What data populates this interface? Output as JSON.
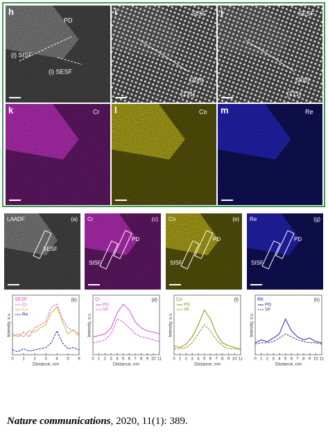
{
  "top_panels": [
    {
      "label": "h",
      "texts": [
        "PD",
        "(i) SISF",
        "(i) SESF"
      ]
    },
    {
      "label": "i",
      "texts": [
        "SISF",
        "[200]",
        "[1̄1̄1]"
      ]
    },
    {
      "label": "j",
      "texts": [
        "SESF",
        "[200]",
        "[1̄1̄1]"
      ]
    },
    {
      "label": "k",
      "texts": [
        "Cr"
      ]
    },
    {
      "label": "l",
      "texts": [
        "Co"
      ]
    },
    {
      "label": "m",
      "texts": [
        "Re"
      ]
    }
  ],
  "bottom_panels": [
    {
      "title": "LAADF",
      "tag": "(a)",
      "texts": [
        "SESF"
      ]
    },
    {
      "title": "Cr",
      "tag": "(c)",
      "texts": [
        "PD",
        "SISF"
      ]
    },
    {
      "title": "Co",
      "tag": "(e)",
      "texts": [
        "PD",
        "SISF"
      ]
    },
    {
      "title": "Re",
      "tag": "(g)",
      "texts": [
        "PD",
        "SISF"
      ]
    }
  ],
  "plots": [
    {
      "title": "SESF",
      "tag": "(b)",
      "xlabel": "Distance, nm",
      "ylabel": "Intensity, a.u.",
      "xlim": [
        0,
        6
      ],
      "xticks": [
        0,
        1,
        2,
        3,
        4,
        5,
        6
      ],
      "ylim": [
        0,
        1
      ],
      "x": [
        0,
        0.5,
        1,
        1.5,
        2,
        2.5,
        3,
        3.5,
        4,
        4.5,
        5,
        5.5,
        6
      ],
      "series": [
        {
          "name": "Cr",
          "color": "#e040e0",
          "dash": true,
          "values": [
            0.35,
            0.3,
            0.38,
            0.3,
            0.45,
            0.5,
            0.55,
            0.8,
            0.85,
            0.6,
            0.45,
            0.4,
            0.35
          ]
        },
        {
          "name": "Co",
          "color": "#c8c020",
          "dash": false,
          "values": [
            0.3,
            0.35,
            0.3,
            0.4,
            0.38,
            0.45,
            0.5,
            0.7,
            0.8,
            0.55,
            0.35,
            0.42,
            0.3
          ]
        },
        {
          "name": "Re",
          "color": "#2020c0",
          "dash": true,
          "values": [
            0.08,
            0.05,
            0.1,
            0.06,
            0.08,
            0.1,
            0.12,
            0.2,
            0.4,
            0.2,
            0.1,
            0.12,
            0.08
          ]
        }
      ]
    },
    {
      "title": "Cr",
      "tag": "(d)",
      "xlabel": "Distance, nm",
      "ylabel": "Intensity, a.u.",
      "xlim": [
        0,
        11
      ],
      "xticks": [
        0,
        1,
        2,
        3,
        4,
        5,
        6,
        7,
        8,
        9,
        10,
        11
      ],
      "ylim": [
        0,
        1
      ],
      "x": [
        0,
        1,
        2,
        3,
        4,
        5,
        6,
        7,
        8,
        9,
        10,
        11
      ],
      "series": [
        {
          "name": "PD",
          "color": "#e040e0",
          "dash": false,
          "values": [
            0.3,
            0.32,
            0.35,
            0.45,
            0.7,
            0.85,
            0.75,
            0.55,
            0.45,
            0.4,
            0.38,
            0.35
          ]
        },
        {
          "name": "SF",
          "color": "#e040e0",
          "dash": true,
          "values": [
            0.2,
            0.22,
            0.25,
            0.35,
            0.6,
            0.55,
            0.45,
            0.35,
            0.3,
            0.28,
            0.25,
            0.22
          ]
        }
      ]
    },
    {
      "title": "Co",
      "tag": "(f)",
      "xlabel": "Distance, nm",
      "ylabel": "Intensity, a.u.",
      "xlim": [
        0,
        11
      ],
      "xticks": [
        0,
        1,
        2,
        3,
        4,
        5,
        6,
        7,
        8,
        9,
        10,
        11
      ],
      "ylim": [
        0,
        1
      ],
      "x": [
        0,
        1,
        2,
        3,
        4,
        5,
        6,
        7,
        8,
        9,
        10,
        11
      ],
      "series": [
        {
          "name": "PD",
          "color": "#8a8a10",
          "dash": false,
          "values": [
            0.15,
            0.12,
            0.18,
            0.3,
            0.5,
            0.75,
            0.6,
            0.35,
            0.2,
            0.15,
            0.12,
            0.1
          ]
        },
        {
          "name": "SF",
          "color": "#8a8a10",
          "dash": true,
          "values": [
            0.1,
            0.1,
            0.12,
            0.2,
            0.35,
            0.5,
            0.4,
            0.25,
            0.15,
            0.1,
            0.1,
            0.08
          ]
        }
      ]
    },
    {
      "title": "Re",
      "tag": "(h)",
      "xlabel": "Distance, nm",
      "ylabel": "Intensity, a.u.",
      "xlim": [
        0,
        11
      ],
      "xticks": [
        0,
        1,
        2,
        3,
        4,
        5,
        6,
        7,
        8,
        9,
        10,
        11
      ],
      "ylim": [
        0,
        1
      ],
      "x": [
        0,
        1,
        2,
        3,
        4,
        5,
        6,
        7,
        8,
        9,
        10,
        11
      ],
      "series": [
        {
          "name": "PD",
          "color": "#2020c0",
          "dash": false,
          "values": [
            0.2,
            0.25,
            0.22,
            0.28,
            0.35,
            0.6,
            0.4,
            0.3,
            0.25,
            0.28,
            0.22,
            0.2
          ]
        },
        {
          "name": "SF",
          "color": "#404040",
          "dash": true,
          "values": [
            0.18,
            0.2,
            0.2,
            0.22,
            0.28,
            0.35,
            0.3,
            0.25,
            0.22,
            0.2,
            0.2,
            0.18
          ]
        }
      ]
    }
  ],
  "citation": {
    "journal": "Nature communications",
    "details": ", 2020, 11(1): 389."
  }
}
